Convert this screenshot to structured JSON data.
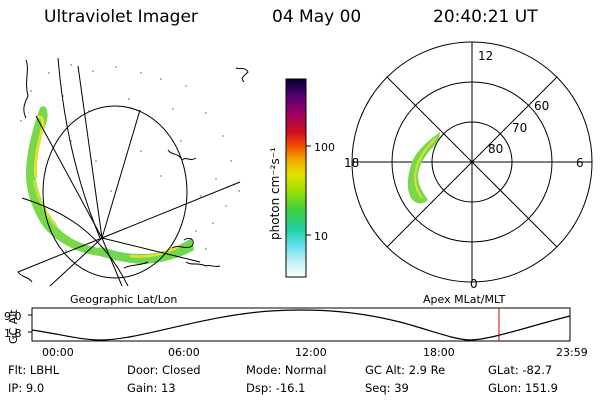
{
  "header": {
    "instrument": "Ultraviolet Imager",
    "date": "04 May 00",
    "time": "20:40:21 UT"
  },
  "colorbar": {
    "unit_label": "photon cm⁻²s⁻¹",
    "ticks": [
      "100",
      "10"
    ],
    "scale": "log",
    "colors": [
      "#000030",
      "#500070",
      "#a00060",
      "#d01020",
      "#f05000",
      "#f0a000",
      "#e8e000",
      "#a0e000",
      "#40d040",
      "#20d0a0",
      "#60e0f0",
      "#c0f0f8",
      "#ffffff"
    ]
  },
  "left_panel": {
    "caption": "Geographic Lat/Lon"
  },
  "right_panel": {
    "caption": "Apex MLat/MLT",
    "mlt_labels": {
      "top": "12",
      "bottom": "0",
      "left": "18",
      "right": "6"
    },
    "mlat_labels": [
      "60",
      "70",
      "80"
    ]
  },
  "timeline": {
    "y_axis_label": "GC Alt",
    "y_ticks": [
      "9.0",
      "1.8"
    ],
    "x_ticks": [
      "00:00",
      "06:00",
      "12:00",
      "18:00",
      "23:59"
    ],
    "marker_time": "20:40",
    "marker_color": "#c00000"
  },
  "status": {
    "filter": {
      "label": "Flt:",
      "value": "LBHL"
    },
    "ip": {
      "label": "IP:",
      "value": "9.0"
    },
    "door": {
      "label": "Door:",
      "value": "Closed"
    },
    "gain": {
      "label": "Gain:",
      "value": "13"
    },
    "mode": {
      "label": "Mode:",
      "value": "Normal"
    },
    "dsp": {
      "label": "Dsp:",
      "value": "-16.1"
    },
    "gc_alt": {
      "label": "GC Alt:",
      "value": "2.9 Re"
    },
    "seq": {
      "label": "Seq:",
      "value": "39"
    },
    "glat": {
      "label": "GLat:",
      "value": "-82.7"
    },
    "glon": {
      "label": "GLon:",
      "value": "151.9"
    }
  }
}
